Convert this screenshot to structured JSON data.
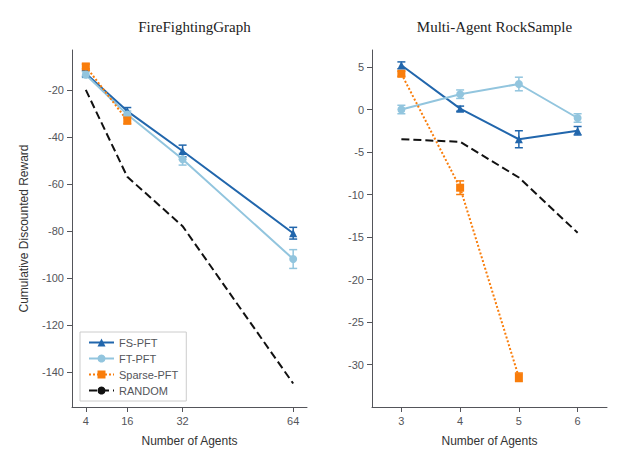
{
  "chart_data": [
    {
      "type": "line",
      "title": "FireFightingGraph",
      "xlabel": "Number of Agents",
      "ylabel": "Cumulative Discounted Reward",
      "xlim": [
        0,
        68
      ],
      "xticks": [
        4,
        16,
        32,
        64
      ],
      "ylim": [
        -155,
        -3
      ],
      "yticks": [
        -20,
        -40,
        -60,
        -80,
        -100,
        -120,
        -140
      ],
      "grid": false,
      "legend": "lower left",
      "series": [
        {
          "name": "FS-PFT",
          "color": "#2166ac",
          "marker": "triangle",
          "line_style": "solid",
          "x": [
            4,
            16,
            32,
            64
          ],
          "values": [
            -13.0,
            -29.0,
            -46.0,
            -81.0
          ],
          "errors": [
            1.2,
            1.5,
            2.5,
            2.5
          ]
        },
        {
          "name": "FT-PFT",
          "color": "#92c5de",
          "marker": "circle",
          "line_style": "solid",
          "x": [
            4,
            16,
            32,
            64
          ],
          "values": [
            -13.5,
            -30.5,
            -49.5,
            -92.0
          ],
          "errors": [
            1.2,
            1.5,
            2.5,
            4.0
          ]
        },
        {
          "name": "Sparse-PFT",
          "color": "#f97d0b",
          "marker": "square",
          "line_style": "dotted",
          "x": [
            4,
            16
          ],
          "values": [
            -10.0,
            -33.0
          ],
          "errors": [
            1.0,
            1.5
          ]
        },
        {
          "name": "RANDOM",
          "color": "#111111",
          "line_style": "dashed",
          "x": [
            4,
            16,
            32,
            64
          ],
          "values": [
            -20.0,
            -57.0,
            -78.0,
            -145.0
          ]
        }
      ]
    },
    {
      "type": "line",
      "title": "Multi-Agent RockSample",
      "xlabel": "Number of Agents",
      "xlim": [
        2.5,
        6.5
      ],
      "xticks": [
        3,
        4,
        5,
        6
      ],
      "ylim": [
        -35,
        7
      ],
      "yticks": [
        5,
        0,
        -5,
        -10,
        -15,
        -20,
        -25,
        -30
      ],
      "grid": false,
      "series": [
        {
          "name": "FS-PFT",
          "color": "#2166ac",
          "marker": "triangle",
          "line_style": "solid",
          "x": [
            3,
            4,
            5,
            6
          ],
          "values": [
            5.2,
            0.1,
            -3.5,
            -2.5
          ],
          "errors": [
            0.4,
            0.3,
            1.0,
            0.5
          ]
        },
        {
          "name": "FT-PFT",
          "color": "#92c5de",
          "marker": "circle",
          "line_style": "solid",
          "x": [
            3,
            4,
            5,
            6
          ],
          "values": [
            0.0,
            1.8,
            3.0,
            -1.0
          ],
          "errors": [
            0.5,
            0.5,
            0.8,
            0.5
          ]
        },
        {
          "name": "Sparse-PFT",
          "color": "#f97d0b",
          "marker": "square",
          "line_style": "dotted",
          "x": [
            3,
            4,
            5
          ],
          "values": [
            4.2,
            -9.2,
            -31.5
          ],
          "errors": [
            0.3,
            0.8,
            0.5
          ]
        },
        {
          "name": "RANDOM",
          "color": "#111111",
          "line_style": "dashed",
          "x": [
            3,
            4,
            5,
            6
          ],
          "values": [
            -3.5,
            -3.8,
            -8.0,
            -14.5
          ]
        }
      ]
    }
  ]
}
